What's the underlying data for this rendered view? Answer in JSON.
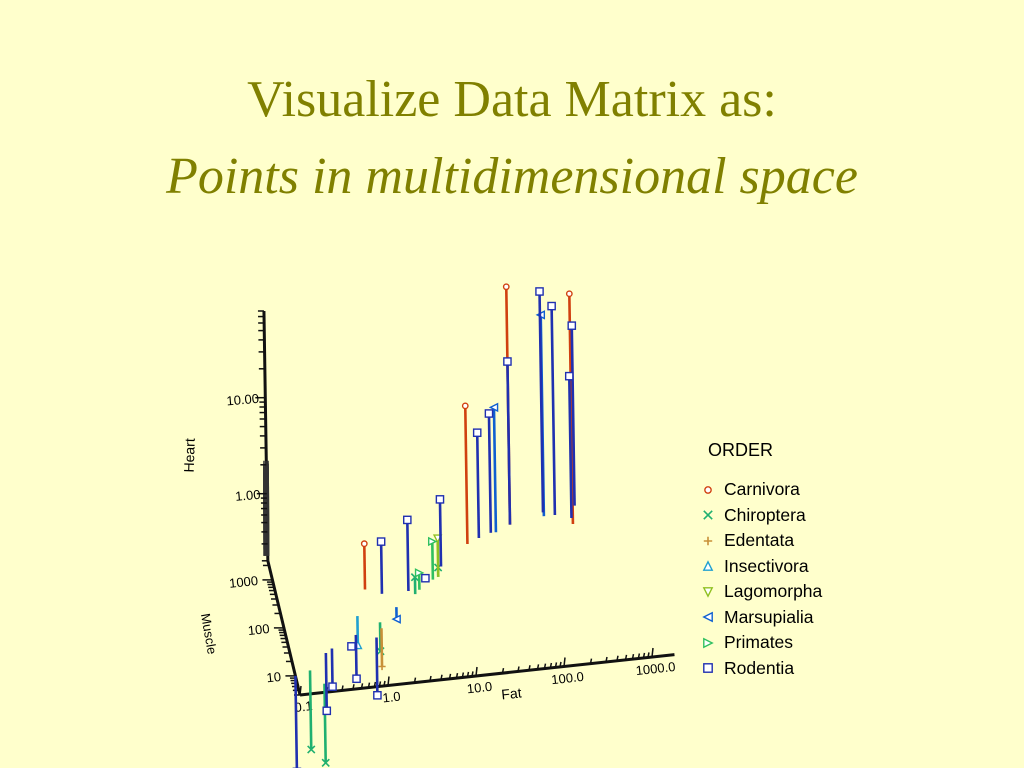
{
  "slide": {
    "title_line1": "Visualize Data Matrix as:",
    "title_line2": "Points in multidimensional space"
  },
  "chart_data": {
    "type": "scatter",
    "subtype": "3d-scatter-with-drop-lines",
    "axes": {
      "x": {
        "label": "Fat",
        "scale": "log",
        "ticks": [
          "0.1",
          "1.0",
          "10.0",
          "100.0",
          "1000.0"
        ]
      },
      "y": {
        "label": "Muscle",
        "scale": "log",
        "ticks": [
          "10",
          "100",
          "1000"
        ]
      },
      "z": {
        "label": "Heart",
        "scale": "log",
        "ticks": [
          "1.00",
          "10.00"
        ]
      }
    },
    "legend": {
      "title": "ORDER",
      "placement": "right"
    },
    "series": [
      {
        "name": "Carnivora",
        "marker": "circle",
        "color": "#d04010",
        "points": [
          {
            "fat": 1.0,
            "muscle": 400,
            "heart": 0.6
          },
          {
            "fat": 18,
            "muscle": 2000,
            "heart": 5.5
          },
          {
            "fat": 60,
            "muscle": 4000,
            "heart": 60
          },
          {
            "fat": 300,
            "muscle": 3000,
            "heart": 50
          }
        ]
      },
      {
        "name": "Chiroptera",
        "marker": "x",
        "color": "#20b070",
        "points": [
          {
            "fat": 0.15,
            "muscle": 12,
            "heart": 0.03
          },
          {
            "fat": 0.2,
            "muscle": 6,
            "heart": 0.03
          },
          {
            "fat": 1.2,
            "muscle": 80,
            "heart": 0.1
          },
          {
            "fat": 3.5,
            "muscle": 250,
            "heart": 0.3
          },
          {
            "fat": 7,
            "muscle": 500,
            "heart": 0.25
          }
        ]
      },
      {
        "name": "Edentata",
        "marker": "plus",
        "color": "#c89038",
        "points": [
          {
            "fat": 1.2,
            "muscle": 60,
            "heart": 0.08
          }
        ]
      },
      {
        "name": "Insectivora",
        "marker": "triangle-up",
        "color": "#20a0d0",
        "points": [
          {
            "fat": 0.7,
            "muscle": 120,
            "heart": 0.1
          }
        ]
      },
      {
        "name": "Lagomorpha",
        "marker": "triangle-down",
        "color": "#90c020",
        "points": [
          {
            "fat": 7,
            "muscle": 500,
            "heart": 0.5
          }
        ]
      },
      {
        "name": "Marsupialia",
        "marker": "triangle-left",
        "color": "#1060d0",
        "points": [
          {
            "fat": 2,
            "muscle": 150,
            "heart": 0.15
          },
          {
            "fat": 40,
            "muscle": 3000,
            "heart": 4.0
          },
          {
            "fat": 150,
            "muscle": 5000,
            "heart": 25
          }
        ]
      },
      {
        "name": "Primates",
        "marker": "triangle-right",
        "color": "#30c060",
        "points": [
          {
            "fat": 4,
            "muscle": 300,
            "heart": 0.3
          },
          {
            "fat": 6,
            "muscle": 450,
            "heart": 0.5
          }
        ]
      },
      {
        "name": "Rodentia",
        "marker": "square",
        "color": "#2030b0",
        "points": [
          {
            "fat": 0.1,
            "muscle": 10,
            "heart": 0.02
          },
          {
            "fat": 0.25,
            "muscle": 25,
            "heart": 0.05
          },
          {
            "fat": 0.3,
            "muscle": 30,
            "heart": 0.08
          },
          {
            "fat": 0.5,
            "muscle": 30,
            "heart": 0.2
          },
          {
            "fat": 0.6,
            "muscle": 50,
            "heart": 0.07
          },
          {
            "fat": 1.0,
            "muscle": 40,
            "heart": 0.05
          },
          {
            "fat": 1.5,
            "muscle": 300,
            "heart": 0.7
          },
          {
            "fat": 3,
            "muscle": 300,
            "heart": 1.1
          },
          {
            "fat": 5,
            "muscle": 500,
            "heart": 0.2
          },
          {
            "fat": 8,
            "muscle": 800,
            "heart": 1.0
          },
          {
            "fat": 25,
            "muscle": 2500,
            "heart": 2.5
          },
          {
            "fat": 35,
            "muscle": 3000,
            "heart": 3.5
          },
          {
            "fat": 60,
            "muscle": 4000,
            "heart": 10
          },
          {
            "fat": 150,
            "muscle": 6000,
            "heart": 40
          },
          {
            "fat": 200,
            "muscle": 5000,
            "heart": 30
          },
          {
            "fat": 350,
            "muscle": 7000,
            "heart": 15
          },
          {
            "fat": 300,
            "muscle": 4000,
            "heart": 6
          }
        ]
      }
    ]
  }
}
